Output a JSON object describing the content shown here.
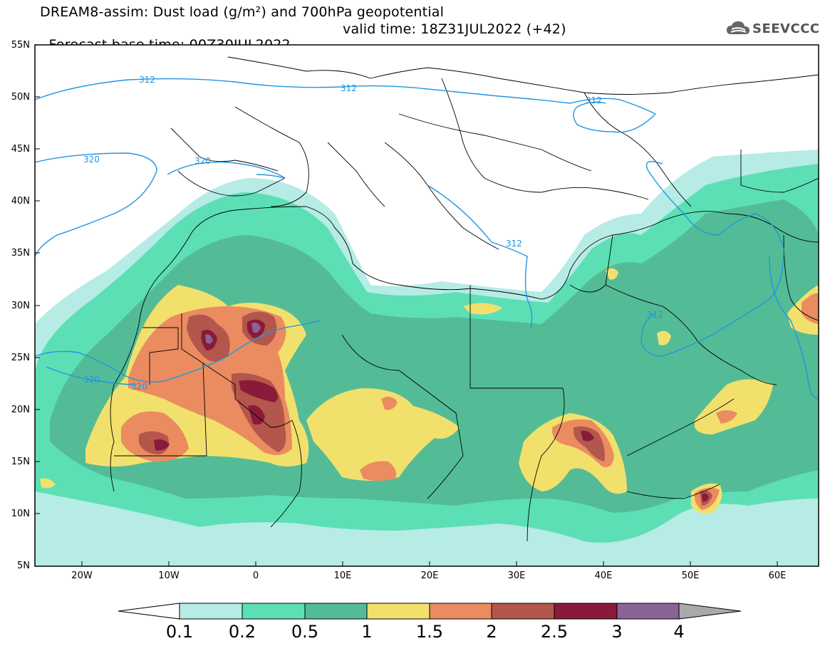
{
  "title": {
    "line1": "DREAM8-assim: Dust load (g/m²) and 700hPa geopotential",
    "line2_base": "Forecast base time: 00Z30JUL2022",
    "line2_valid": "valid time: 18Z31JUL2022 (+42)"
  },
  "logo": {
    "text": "SEEVCCC",
    "icon": "cloud-icon"
  },
  "map": {
    "lat_labels": [
      "55N",
      "50N",
      "45N",
      "40N",
      "35N",
      "30N",
      "25N",
      "20N",
      "15N",
      "10N",
      "5N"
    ],
    "lon_labels": [
      "20W",
      "10W",
      "0",
      "10E",
      "20E",
      "30E",
      "40E",
      "50E",
      "60E"
    ],
    "contour_labels": [
      "312",
      "312",
      "312",
      "312",
      "312",
      "320",
      "320",
      "320",
      "320"
    ],
    "colors": {
      "ocean": "#ffffff",
      "c01": "#b6ece5",
      "c02": "#5ddfb6",
      "c05": "#53bc96",
      "c1": "#f2e06d",
      "c15": "#ea8c60",
      "c2": "#b3564b",
      "c25": "#8a1a3a",
      "c3": "#8a6494",
      "c4": "#a9a9a9",
      "contour": "#2196e0",
      "border": "#000000"
    }
  },
  "colorbar": {
    "labels": [
      "0.1",
      "0.2",
      "0.5",
      "1",
      "1.5",
      "2",
      "2.5",
      "3",
      "4"
    ],
    "colors": [
      "#b6ece5",
      "#5ddfb6",
      "#53bc96",
      "#f2e06d",
      "#ea8c60",
      "#b3564b",
      "#8a1a3a",
      "#8a6494"
    ]
  }
}
